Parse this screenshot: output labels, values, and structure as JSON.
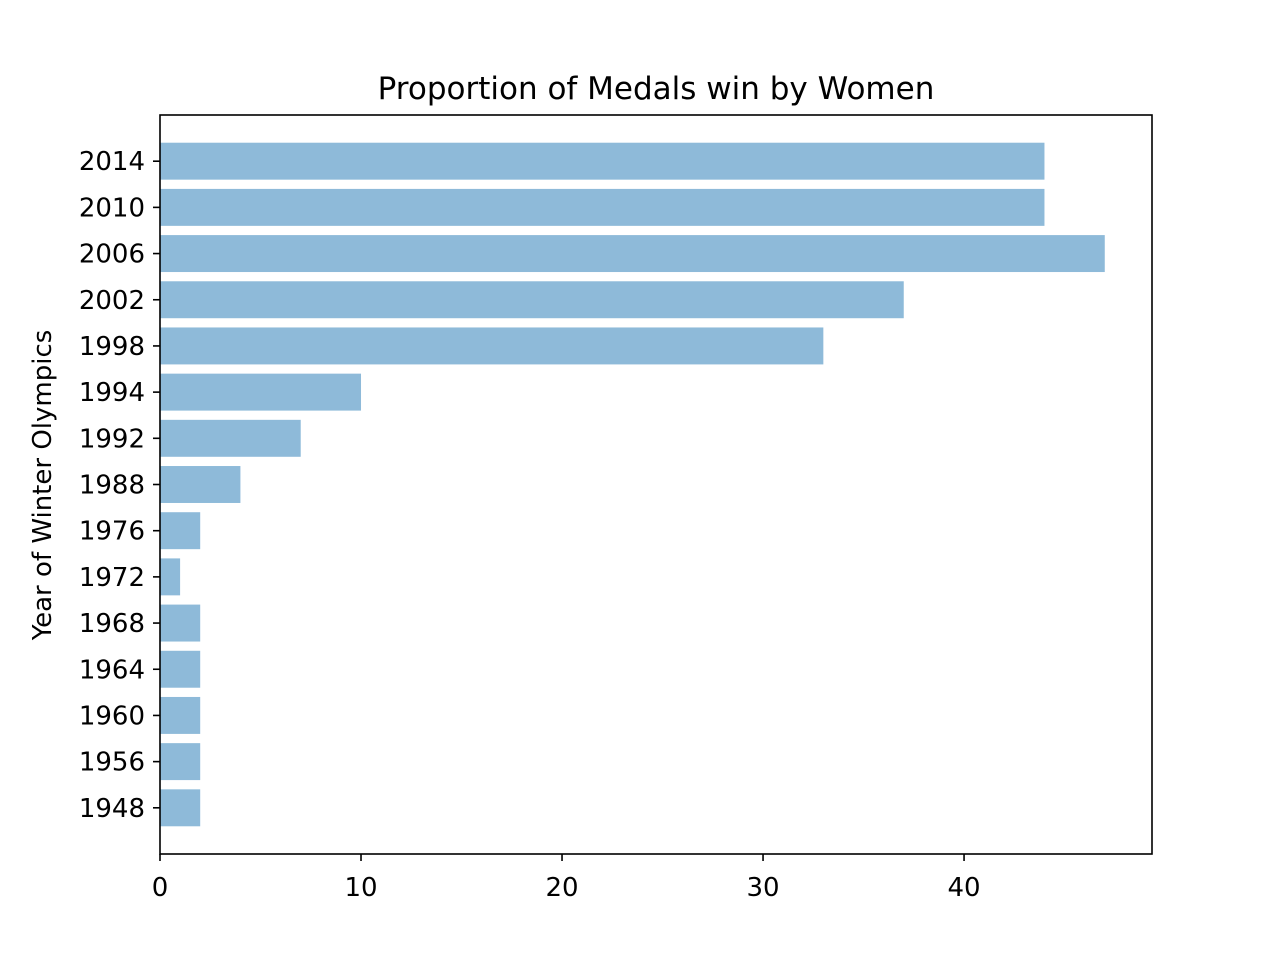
{
  "chart_data": {
    "type": "bar",
    "orientation": "horizontal",
    "title": "Proportion of Medals win by Women",
    "xlabel": "",
    "ylabel": "Year of Winter Olympics",
    "categories": [
      "1948",
      "1956",
      "1960",
      "1964",
      "1968",
      "1972",
      "1976",
      "1988",
      "1992",
      "1994",
      "1998",
      "2002",
      "2006",
      "2010",
      "2014"
    ],
    "values": [
      2,
      2,
      2,
      2,
      2,
      1,
      2,
      4,
      7,
      10,
      33,
      37,
      47,
      44,
      44
    ],
    "xlim": [
      0,
      49.35
    ],
    "xticks": [
      0,
      10,
      20,
      30,
      40
    ],
    "bar_color": "#8ebad9",
    "grid": false,
    "legend": "none"
  }
}
